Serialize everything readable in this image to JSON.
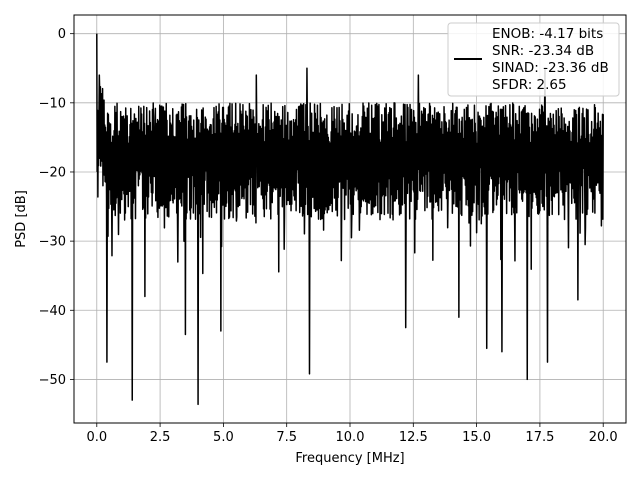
{
  "chart_data": {
    "type": "line",
    "title": "",
    "xlabel": "Frequency [MHz]",
    "ylabel": "PSD [dB]",
    "xlim": [
      -0.9,
      20.9
    ],
    "ylim": [
      -56.3,
      2.7
    ],
    "xticks": [
      0.0,
      2.5,
      5.0,
      7.5,
      10.0,
      12.5,
      15.0,
      17.5,
      20.0
    ],
    "xtick_labels": [
      "0.0",
      "2.5",
      "5.0",
      "7.5",
      "10.0",
      "12.5",
      "15.0",
      "17.5",
      "20.0"
    ],
    "yticks": [
      0,
      -10,
      -20,
      -30,
      -40,
      -50
    ],
    "ytick_labels": [
      "0",
      "−10",
      "−20",
      "−30",
      "−40",
      "−50"
    ],
    "grid": true,
    "legend": {
      "placement": "top-right",
      "lines": [
        "ENOB: -4.17 bits",
        "SNR: -23.34 dB",
        "SINAD: -23.36 dB",
        "SFDR: 2.65"
      ]
    },
    "series": [
      {
        "color": "#000000",
        "x_range": [
          0.0,
          20.0
        ],
        "typical_upper_dB": -10,
        "typical_lower_dB": -27,
        "peaks": [
          [
            0.0,
            0.0
          ],
          [
            0.1,
            -6
          ],
          [
            2.3,
            -12
          ],
          [
            6.3,
            -6
          ],
          [
            8.3,
            -5
          ],
          [
            12.7,
            -6
          ],
          [
            17.7,
            -5
          ]
        ],
        "dips": [
          [
            0.4,
            -47.5
          ],
          [
            1.4,
            -53.0
          ],
          [
            1.9,
            -38
          ],
          [
            3.5,
            -43.5
          ],
          [
            4.0,
            -53.6
          ],
          [
            4.9,
            -43
          ],
          [
            8.4,
            -49.2
          ],
          [
            12.2,
            -42.5
          ],
          [
            14.3,
            -41
          ],
          [
            15.4,
            -45.5
          ],
          [
            16.0,
            -46
          ],
          [
            17.0,
            -50.0
          ],
          [
            17.8,
            -47.5
          ],
          [
            19.0,
            -38.5
          ]
        ]
      }
    ]
  }
}
